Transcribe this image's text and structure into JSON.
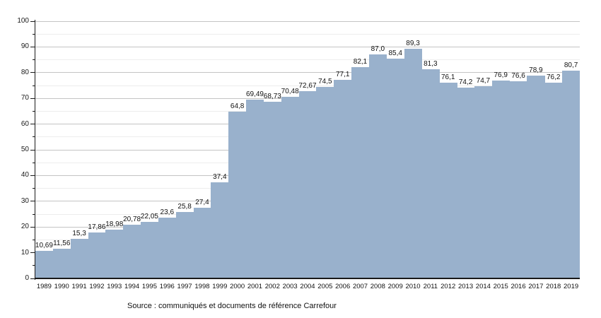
{
  "chart_data": {
    "type": "bar",
    "title": "",
    "xlabel": "",
    "ylabel": "",
    "categories": [
      "1989",
      "1990",
      "1991",
      "1992",
      "1993",
      "1994",
      "1995",
      "1996",
      "1997",
      "1998",
      "1999",
      "2000",
      "2001",
      "2002",
      "2003",
      "2004",
      "2005",
      "2006",
      "2007",
      "2008",
      "2009",
      "2010",
      "2011",
      "2012",
      "2013",
      "2014",
      "2015",
      "2016",
      "2017",
      "2018",
      "2019"
    ],
    "values": [
      10.69,
      11.56,
      15.3,
      17.86,
      18.98,
      20.78,
      22.05,
      23.6,
      25.8,
      27.4,
      37.4,
      64.8,
      69.49,
      68.73,
      70.48,
      72.67,
      74.5,
      77.1,
      82.1,
      87.0,
      85.4,
      89.3,
      81.3,
      76.1,
      74.2,
      74.7,
      76.9,
      76.6,
      78.9,
      76.2,
      80.7
    ],
    "value_labels": [
      "10,69",
      "11,56",
      "15,3",
      "17,86",
      "18,98",
      "20,78",
      "22,05",
      "23,6",
      "25,8",
      "27,4",
      "37,4",
      "64,8",
      "69,49",
      "68,73",
      "70,48",
      "72,67",
      "74,5",
      "77,1",
      "82,1",
      "87,0",
      "85,4",
      "89,3",
      "81,3",
      "76,1",
      "74,2",
      "74,7",
      "76,9",
      "76,6",
      "78,9",
      "76,2",
      "80,7"
    ],
    "ylim": [
      0,
      100
    ],
    "ytick_step": 10,
    "ytick_minor_step": 5,
    "ytick_labels": [
      "0",
      "10",
      "20",
      "30",
      "40",
      "50",
      "60",
      "70",
      "80",
      "90",
      "100"
    ],
    "grid": "on",
    "legend": "none",
    "bar_color": "#99b1cc",
    "grid_major_color": "#c4c4c4",
    "grid_minor_color": "#ededed",
    "axis_color": "#1a1a1a"
  },
  "caption": {
    "source": "Source : communiqués et documents de référence Carrefour"
  }
}
